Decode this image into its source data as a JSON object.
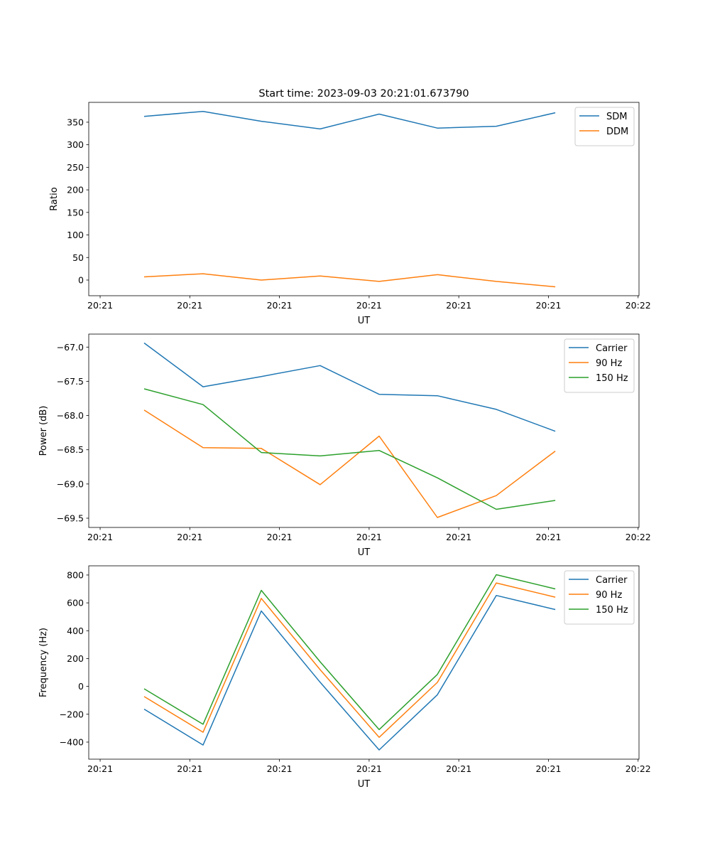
{
  "figure_title": "Start time: 2023-09-03 20:21:01.673790",
  "chart_data": [
    {
      "type": "line",
      "title": "Start time: 2023-09-03 20:21:01.673790",
      "xlabel": "UT",
      "ylabel": "Ratio",
      "x": [
        0.491,
        1.148,
        1.797,
        2.454,
        3.112,
        3.761,
        4.418,
        5.076
      ],
      "xlim": [
        -0.127,
        6.01
      ],
      "xticks": [
        0,
        1,
        2,
        3,
        4,
        5,
        6
      ],
      "xtick_labels": [
        "20:21",
        "20:21",
        "20:21",
        "20:21",
        "20:21",
        "20:21",
        "20:22"
      ],
      "ylim": [
        -34.7,
        394
      ],
      "yticks": [
        0,
        50,
        100,
        150,
        200,
        250,
        300,
        350
      ],
      "ytick_labels": [
        "0",
        "50",
        "100",
        "150",
        "200",
        "250",
        "300",
        "350"
      ],
      "grid": false,
      "legend_position": "top-right",
      "series": [
        {
          "name": "SDM",
          "color": "#1f77b4",
          "values": [
            363,
            374,
            352,
            335,
            368,
            337,
            341,
            371
          ]
        },
        {
          "name": "DDM",
          "color": "#ff7f0e",
          "values": [
            7,
            14,
            0,
            9,
            -3,
            12,
            -3,
            -15
          ]
        }
      ]
    },
    {
      "type": "line",
      "title": "",
      "xlabel": "UT",
      "ylabel": "Power (dB)",
      "x": [
        0.491,
        1.148,
        1.797,
        2.454,
        3.112,
        3.761,
        4.418,
        5.076
      ],
      "xlim": [
        -0.127,
        6.01
      ],
      "xticks": [
        0,
        1,
        2,
        3,
        4,
        5,
        6
      ],
      "xtick_labels": [
        "20:21",
        "20:21",
        "20:21",
        "20:21",
        "20:21",
        "20:21",
        "20:22"
      ],
      "ylim": [
        -69.635,
        -66.81
      ],
      "yticks": [
        -69.5,
        -69.0,
        -68.5,
        -68.0,
        -67.5,
        -67.0
      ],
      "ytick_labels": [
        "−69.5",
        "−69.0",
        "−68.5",
        "−68.0",
        "−67.5",
        "−67.0"
      ],
      "grid": false,
      "legend_position": "top-right",
      "series": [
        {
          "name": "Carrier",
          "color": "#1f77b4",
          "values": [
            -66.94,
            -67.58,
            -67.43,
            -67.27,
            -67.69,
            -67.71,
            -67.91,
            -68.23
          ]
        },
        {
          "name": "90 Hz",
          "color": "#ff7f0e",
          "values": [
            -67.92,
            -68.47,
            -68.48,
            -69.01,
            -68.3,
            -69.49,
            -69.17,
            -68.52
          ]
        },
        {
          "name": "150 Hz",
          "color": "#2ca02c",
          "values": [
            -67.61,
            -67.84,
            -68.54,
            -68.59,
            -68.51,
            -68.91,
            -69.37,
            -69.24
          ]
        }
      ]
    },
    {
      "type": "line",
      "title": "",
      "xlabel": "UT",
      "ylabel": "Frequency (Hz)",
      "x": [
        0.491,
        1.148,
        1.797,
        2.454,
        3.112,
        3.761,
        4.418,
        5.076
      ],
      "xlim": [
        -0.127,
        6.01
      ],
      "xticks": [
        0,
        1,
        2,
        3,
        4,
        5,
        6
      ],
      "xtick_labels": [
        "20:21",
        "20:21",
        "20:21",
        "20:21",
        "20:21",
        "20:21",
        "20:22"
      ],
      "ylim": [
        -522.6,
        866
      ],
      "yticks": [
        -400,
        -200,
        0,
        200,
        400,
        600,
        800
      ],
      "ytick_labels": [
        "−400",
        "−200",
        "0",
        "200",
        "400",
        "600",
        "800"
      ],
      "grid": false,
      "legend_position": "top-right",
      "series": [
        {
          "name": "Carrier",
          "color": "#1f77b4",
          "values": [
            -163,
            -421,
            542,
            30,
            -456,
            -60,
            653,
            552
          ]
        },
        {
          "name": "90 Hz",
          "color": "#ff7f0e",
          "values": [
            -73,
            -329,
            632,
            120,
            -366,
            29,
            743,
            641
          ]
        },
        {
          "name": "150 Hz",
          "color": "#2ca02c",
          "values": [
            -17,
            -272,
            690,
            177,
            -310,
            86,
            802,
            700
          ]
        }
      ]
    }
  ]
}
